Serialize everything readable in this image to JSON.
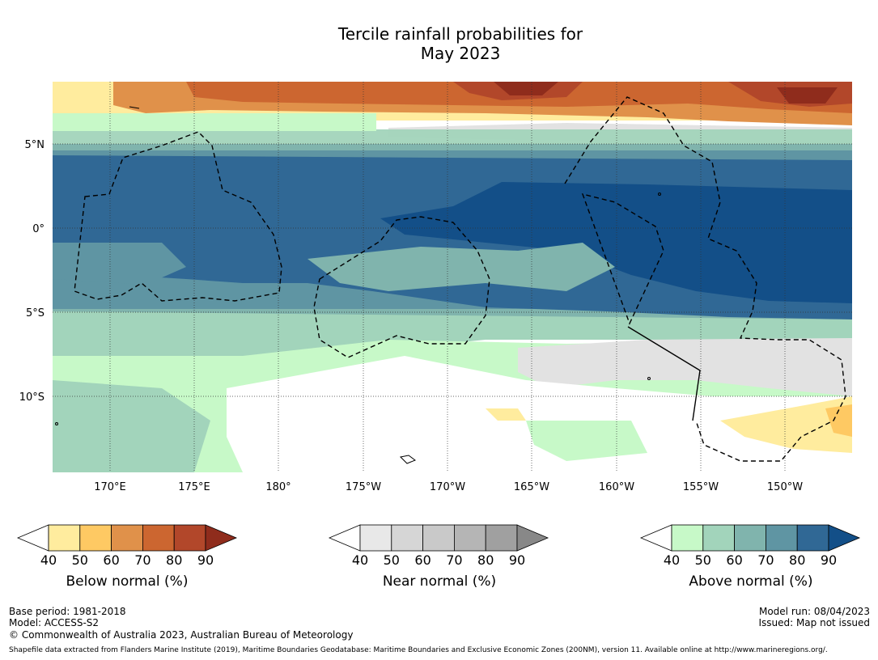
{
  "title": {
    "line1": "Tercile rainfall probabilities for",
    "line2": "May 2023"
  },
  "map": {
    "lat_labels": [
      "5°N",
      "0°",
      "5°S",
      "10°S"
    ],
    "lon_labels": [
      "170°E",
      "175°E",
      "180°",
      "175°W",
      "170°W",
      "165°W",
      "160°W",
      "155°W",
      "150°W"
    ]
  },
  "colorbars": [
    {
      "name": "below",
      "label": "Below normal (%)",
      "ticks": [
        "40",
        "50",
        "60",
        "70",
        "80",
        "90"
      ],
      "colors": [
        "#ffffff",
        "#ffec9e",
        "#fec963",
        "#e0914a",
        "#cc6630",
        "#b2472a",
        "#8f2c1c"
      ]
    },
    {
      "name": "near",
      "label": "Near normal (%)",
      "ticks": [
        "40",
        "50",
        "60",
        "70",
        "80",
        "90"
      ],
      "colors": [
        "#ffffff",
        "#e8e8e8",
        "#d6d6d6",
        "#c9c9c9",
        "#b5b5b5",
        "#a0a0a0",
        "#888888"
      ]
    },
    {
      "name": "above",
      "label": "Above normal (%)",
      "ticks": [
        "40",
        "50",
        "60",
        "70",
        "80",
        "90"
      ],
      "colors": [
        "#ffffff",
        "#c7f9c8",
        "#a2d4bb",
        "#80b4ad",
        "#5f95a3",
        "#306895",
        "#134f88"
      ]
    }
  ],
  "footer": {
    "base_period": "Base period: 1981-2018",
    "model": "Model: ACCESS-S2",
    "copyright": "© Commonwealth of Australia 2023, Australian Bureau of Meteorology",
    "model_run": "Model run: 08/04/2023",
    "issued": "Issued: Map not issued",
    "shapefile": "Shapefile data extracted from Flanders Marine Institute (2019), Maritime Boundaries Geodatabase: Maritime Boundaries and Exclusive Economic Zones (200NM), version 11. Available online at http://www.marineregions.org/."
  }
}
